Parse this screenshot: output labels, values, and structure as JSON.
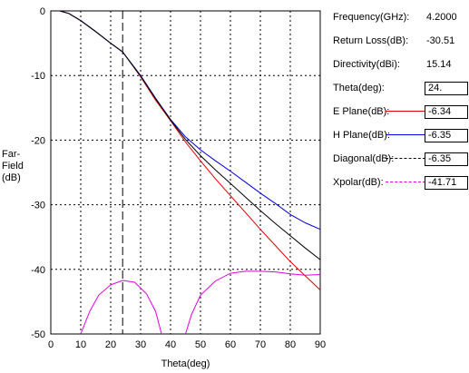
{
  "chart_data": {
    "type": "line",
    "xlabel": "Theta(deg)",
    "ylabel": "Far-\nField\n(dB)",
    "xlim": [
      0,
      90
    ],
    "ylim": [
      -50,
      0
    ],
    "xticks": [
      0,
      10,
      20,
      30,
      40,
      50,
      60,
      70,
      80,
      90
    ],
    "yticks": [
      0,
      -10,
      -20,
      -30,
      -40,
      -50
    ],
    "grid": true,
    "cursor_theta": 24,
    "series": [
      {
        "name": "E Plane(dB)",
        "color": "#e00000",
        "x": [
          3,
          6,
          10,
          15,
          20,
          24,
          30,
          35,
          40,
          45,
          50,
          55,
          60,
          65,
          70,
          75,
          80,
          85,
          90
        ],
        "y": [
          0,
          -0.4,
          -1.5,
          -3.2,
          -5.0,
          -6.34,
          -10.2,
          -13.8,
          -17.0,
          -20.3,
          -23.2,
          -26.0,
          -28.6,
          -31.2,
          -33.8,
          -36.3,
          -38.8,
          -41.0,
          -43.2
        ]
      },
      {
        "name": "H Plane(dB)",
        "color": "#0000e0",
        "x": [
          3,
          6,
          10,
          15,
          20,
          24,
          30,
          35,
          40,
          45,
          50,
          55,
          60,
          65,
          70,
          75,
          80,
          85,
          90
        ],
        "y": [
          0,
          -0.4,
          -1.5,
          -3.2,
          -5.0,
          -6.35,
          -10.0,
          -13.5,
          -16.8,
          -19.5,
          -21.5,
          -23.2,
          -24.8,
          -26.5,
          -28.2,
          -29.8,
          -31.5,
          -32.8,
          -33.8
        ]
      },
      {
        "name": "Diagonal(dB)",
        "color": "#000000",
        "x": [
          3,
          6,
          10,
          15,
          20,
          24,
          30,
          35,
          40,
          45,
          50,
          55,
          60,
          65,
          70,
          75,
          80,
          85,
          90
        ],
        "y": [
          0,
          -0.4,
          -1.5,
          -3.2,
          -5.0,
          -6.35,
          -10.1,
          -13.6,
          -16.9,
          -19.9,
          -22.4,
          -24.6,
          -26.7,
          -28.8,
          -30.9,
          -32.9,
          -34.8,
          -36.7,
          -38.5
        ]
      },
      {
        "name": "Xpolar(dB)",
        "color": "#e000e0",
        "x": [
          10,
          13,
          16,
          20,
          24,
          28,
          32,
          35,
          37,
          null,
          45,
          47,
          50,
          55,
          60,
          65,
          70,
          75,
          80,
          85,
          90
        ],
        "y": [
          -50,
          -46.5,
          -44.0,
          -42.4,
          -41.71,
          -42.0,
          -43.8,
          -46.5,
          -50,
          null,
          -50,
          -47.0,
          -44.0,
          -41.8,
          -40.6,
          -40.3,
          -40.3,
          -40.4,
          -40.7,
          -40.9,
          -40.8
        ]
      }
    ]
  },
  "panel": {
    "frequency_label": "Frequency(GHz):",
    "frequency_value": "4.2000",
    "return_loss_label": "Return Loss(dB):",
    "return_loss_value": "-30.51",
    "directivity_label": "Directivity(dBi):",
    "directivity_value": "15.14",
    "theta_label": "Theta(deg):",
    "theta_value": "24.",
    "eplane_label": "E Plane(dB):",
    "eplane_value": "-6.34",
    "hplane_label": "H Plane(dB):",
    "hplane_value": "-6.35",
    "diagonal_label": "Diagonal(dB):",
    "diagonal_value": "-6.35",
    "xpolar_label": "Xpolar(dB):",
    "xpolar_value": "-41.71"
  }
}
